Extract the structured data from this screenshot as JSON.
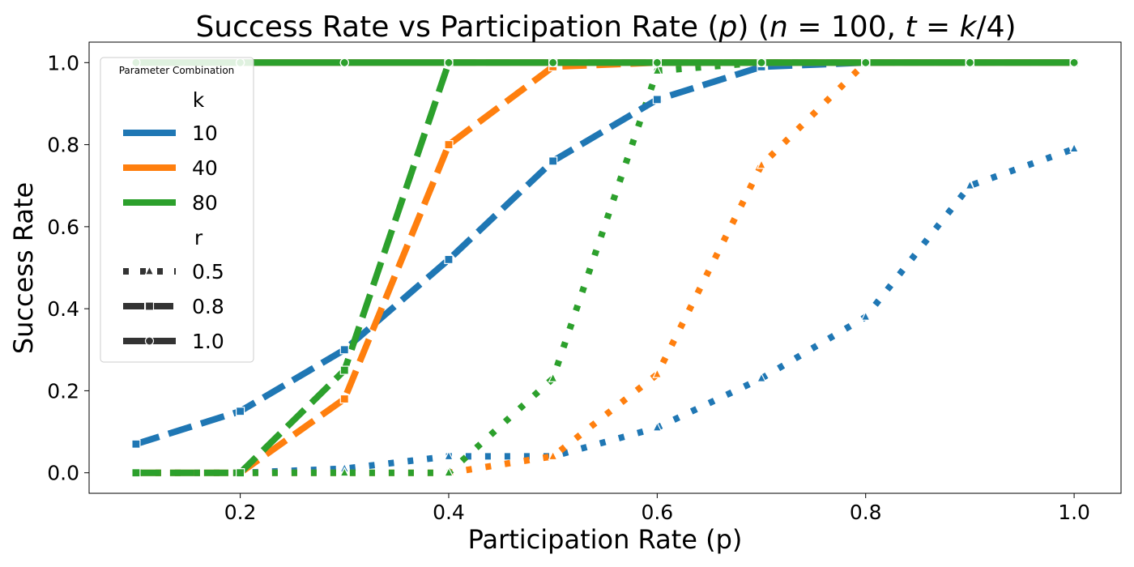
{
  "chart_data": {
    "type": "line",
    "title": "Success Rate vs Participation Rate (p) (n = 100, t = k/4)",
    "title_parts": {
      "prefix": "Success Rate vs Participation Rate (",
      "p": "p",
      "mid1": ") (",
      "n": "n",
      "eq1": " = 100, ",
      "t": "t",
      "eq2": " = ",
      "k": "k",
      "suffix": "/4)"
    },
    "xlabel": "Participation Rate (p)",
    "ylabel": "Success Rate",
    "xlim": [
      0.055,
      1.045
    ],
    "ylim": [
      -0.05,
      1.05
    ],
    "x_ticks": [
      0.2,
      0.4,
      0.6,
      0.8,
      1.0
    ],
    "x_tick_labels": [
      "0.2",
      "0.4",
      "0.6",
      "0.8",
      "1.0"
    ],
    "y_ticks": [
      0.0,
      0.2,
      0.4,
      0.6,
      0.8,
      1.0
    ],
    "y_tick_labels": [
      "0.0",
      "0.2",
      "0.4",
      "0.6",
      "0.8",
      "1.0"
    ],
    "grid": false,
    "legend": {
      "placement": "top-left",
      "title": "Parameter Combination",
      "hue_title": "k",
      "style_title": "r",
      "hue_entries": [
        {
          "label": "10",
          "color": "#1f77b4"
        },
        {
          "label": "40",
          "color": "#ff7f0e"
        },
        {
          "label": "80",
          "color": "#2ca02c"
        }
      ],
      "style_entries": [
        {
          "label": "0.5",
          "style": "dotted",
          "marker": "triangle"
        },
        {
          "label": "0.8",
          "style": "dashed",
          "marker": "square"
        },
        {
          "label": "1.0",
          "style": "solid",
          "marker": "circle"
        }
      ],
      "key_color": "#333333"
    },
    "colors": {
      "k10": "#1f77b4",
      "k40": "#ff7f0e",
      "k80": "#2ca02c"
    },
    "series": [
      {
        "name": "k=10, r=0.5",
        "k": "10",
        "r": "0.5",
        "style": "dotted",
        "marker": "triangle",
        "color": "#1f77b4",
        "x": [
          0.1,
          0.2,
          0.3,
          0.4,
          0.5,
          0.6,
          0.7,
          0.8,
          0.9,
          1.0
        ],
        "values": [
          0.0,
          0.0,
          0.01,
          0.04,
          0.04,
          0.11,
          0.23,
          0.38,
          0.7,
          0.79
        ]
      },
      {
        "name": "k=10, r=0.8",
        "k": "10",
        "r": "0.8",
        "style": "dashed",
        "marker": "square",
        "color": "#1f77b4",
        "x": [
          0.1,
          0.2,
          0.3,
          0.4,
          0.5,
          0.6,
          0.7,
          0.8,
          0.9,
          1.0
        ],
        "values": [
          0.07,
          0.15,
          0.3,
          0.52,
          0.76,
          0.91,
          0.99,
          1.0,
          1.0,
          1.0
        ]
      },
      {
        "name": "k=10, r=1.0",
        "k": "10",
        "r": "1.0",
        "style": "solid",
        "marker": "circle",
        "color": "#1f77b4",
        "x": [
          0.1,
          0.2,
          0.3,
          0.4,
          0.5,
          0.6,
          0.7,
          0.8,
          0.9,
          1.0
        ],
        "values": [
          1.0,
          1.0,
          1.0,
          1.0,
          1.0,
          1.0,
          1.0,
          1.0,
          1.0,
          1.0
        ]
      },
      {
        "name": "k=40, r=0.5",
        "k": "40",
        "r": "0.5",
        "style": "dotted",
        "marker": "triangle",
        "color": "#ff7f0e",
        "x": [
          0.1,
          0.2,
          0.3,
          0.4,
          0.5,
          0.6,
          0.7,
          0.8,
          0.9,
          1.0
        ],
        "values": [
          0.0,
          0.0,
          0.0,
          0.0,
          0.04,
          0.24,
          0.75,
          1.0,
          1.0,
          1.0
        ]
      },
      {
        "name": "k=40, r=0.8",
        "k": "40",
        "r": "0.8",
        "style": "dashed",
        "marker": "square",
        "color": "#ff7f0e",
        "x": [
          0.1,
          0.2,
          0.3,
          0.4,
          0.5,
          0.6,
          0.7,
          0.8,
          0.9,
          1.0
        ],
        "values": [
          0.0,
          0.0,
          0.18,
          0.8,
          0.99,
          1.0,
          1.0,
          1.0,
          1.0,
          1.0
        ]
      },
      {
        "name": "k=40, r=1.0",
        "k": "40",
        "r": "1.0",
        "style": "solid",
        "marker": "circle",
        "color": "#ff7f0e",
        "x": [
          0.1,
          0.2,
          0.3,
          0.4,
          0.5,
          0.6,
          0.7,
          0.8,
          0.9,
          1.0
        ],
        "values": [
          1.0,
          1.0,
          1.0,
          1.0,
          1.0,
          1.0,
          1.0,
          1.0,
          1.0,
          1.0
        ]
      },
      {
        "name": "k=80, r=0.5",
        "k": "80",
        "r": "0.5",
        "style": "dotted",
        "marker": "triangle",
        "color": "#2ca02c",
        "x": [
          0.1,
          0.2,
          0.3,
          0.4,
          0.5,
          0.6,
          0.7,
          0.8,
          0.9,
          1.0
        ],
        "values": [
          0.0,
          0.0,
          0.0,
          0.0,
          0.23,
          0.98,
          1.0,
          1.0,
          1.0,
          1.0
        ]
      },
      {
        "name": "k=80, r=0.8",
        "k": "80",
        "r": "0.8",
        "style": "dashed",
        "marker": "square",
        "color": "#2ca02c",
        "x": [
          0.1,
          0.2,
          0.3,
          0.4,
          0.5,
          0.6,
          0.7,
          0.8,
          0.9,
          1.0
        ],
        "values": [
          0.0,
          0.0,
          0.25,
          1.0,
          1.0,
          1.0,
          1.0,
          1.0,
          1.0,
          1.0
        ]
      },
      {
        "name": "k=80, r=1.0",
        "k": "80",
        "r": "1.0",
        "style": "solid",
        "marker": "circle",
        "color": "#2ca02c",
        "x": [
          0.1,
          0.2,
          0.3,
          0.4,
          0.5,
          0.6,
          0.7,
          0.8,
          0.9,
          1.0
        ],
        "values": [
          1.0,
          1.0,
          1.0,
          1.0,
          1.0,
          1.0,
          1.0,
          1.0,
          1.0,
          1.0
        ]
      }
    ]
  }
}
